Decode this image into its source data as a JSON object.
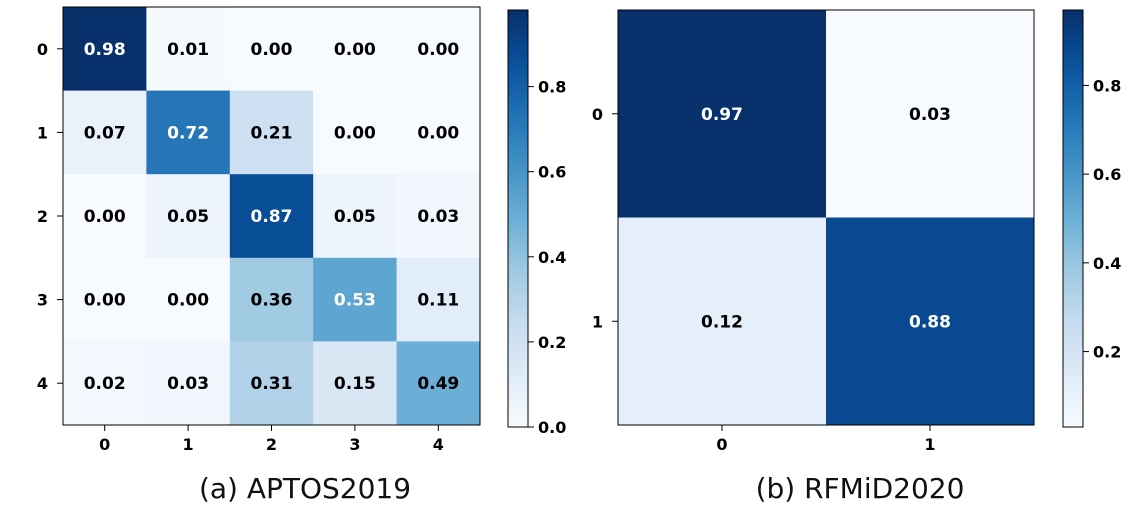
{
  "chart_data": [
    {
      "type": "heatmap",
      "caption": "(a) APTOS2019",
      "x_tick_labels": [
        "0",
        "1",
        "2",
        "3",
        "4"
      ],
      "y_tick_labels": [
        "0",
        "1",
        "2",
        "3",
        "4"
      ],
      "matrix": [
        [
          0.98,
          0.01,
          0.0,
          0.0,
          0.0
        ],
        [
          0.07,
          0.72,
          0.21,
          0.0,
          0.0
        ],
        [
          0.0,
          0.05,
          0.87,
          0.05,
          0.03
        ],
        [
          0.0,
          0.0,
          0.36,
          0.53,
          0.11
        ],
        [
          0.02,
          0.03,
          0.31,
          0.15,
          0.49
        ]
      ],
      "cell_labels": [
        [
          "0.98",
          "0.01",
          "0.00",
          "0.00",
          "0.00"
        ],
        [
          "0.07",
          "0.72",
          "0.21",
          "0.00",
          "0.00"
        ],
        [
          "0.00",
          "0.05",
          "0.87",
          "0.05",
          "0.03"
        ],
        [
          "0.00",
          "0.00",
          "0.36",
          "0.53",
          "0.11"
        ],
        [
          "0.02",
          "0.03",
          "0.31",
          "0.15",
          "0.49"
        ]
      ],
      "colormap": "Blues",
      "colorbar": {
        "range": [
          0.0,
          0.98
        ],
        "ticks": [
          0.0,
          0.2,
          0.4,
          0.6,
          0.8
        ],
        "tick_labels": [
          "0.0",
          "0.2",
          "0.4",
          "0.6",
          "0.8"
        ]
      },
      "xlabel": "",
      "ylabel": "",
      "title": ""
    },
    {
      "type": "heatmap",
      "caption": "(b) RFMiD2020",
      "x_tick_labels": [
        "0",
        "1"
      ],
      "y_tick_labels": [
        "0",
        "1"
      ],
      "matrix": [
        [
          0.97,
          0.03
        ],
        [
          0.12,
          0.88
        ]
      ],
      "cell_labels": [
        [
          "0.97",
          "0.03"
        ],
        [
          "0.12",
          "0.88"
        ]
      ],
      "colormap": "Blues",
      "colorbar": {
        "range": [
          0.03,
          0.97
        ],
        "ticks": [
          0.2,
          0.4,
          0.6,
          0.8
        ],
        "tick_labels": [
          "0.2",
          "0.4",
          "0.6",
          "0.8"
        ]
      },
      "xlabel": "",
      "ylabel": "",
      "title": ""
    }
  ]
}
